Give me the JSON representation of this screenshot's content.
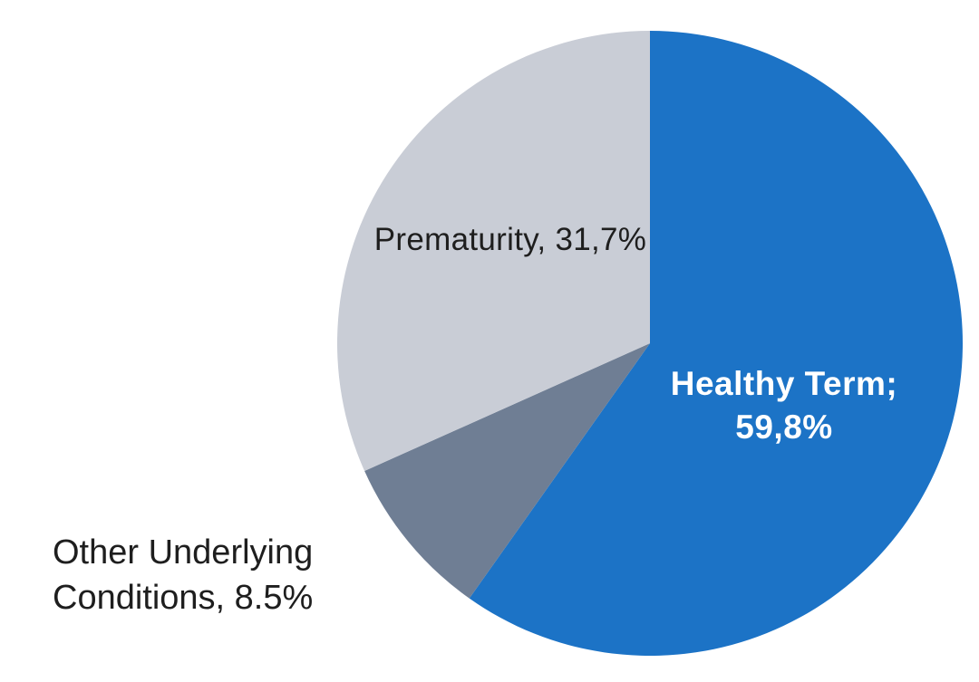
{
  "chart_data": {
    "type": "pie",
    "title": "",
    "background": "#FFFFFF",
    "start_angle_deg": 0,
    "direction": "clockwise",
    "legend": "none",
    "labels_style": "data-labels (two inside slices, one outside lower-left)",
    "slices": [
      {
        "name": "Healthy Term",
        "value": 59.8,
        "label": "Healthy Term; 59,8%",
        "color": "#1C73C6",
        "label_color": "#FFFFFF",
        "label_position": "inside"
      },
      {
        "name": "Other Underlying Conditions",
        "value": 8.5,
        "label": "Other Underlying Conditions, 8.5%",
        "color": "#6F7E94",
        "label_color": "#1E1E1E",
        "label_position": "outside-left"
      },
      {
        "name": "Prematurity",
        "value": 31.7,
        "label": "Prematurity, 31,7%",
        "color": "#C9CDD6",
        "label_color": "#1E1E1E",
        "label_position": "inside"
      }
    ]
  }
}
